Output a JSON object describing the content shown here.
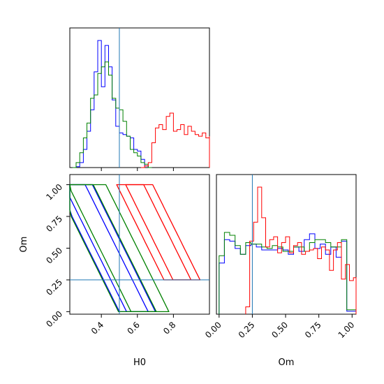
{
  "figure": {
    "type": "corner-plot",
    "colors": {
      "blue": "#0000ff",
      "green": "#008000",
      "red": "#ff0000",
      "truth": "#1f77b4"
    }
  },
  "chart_data": [
    {
      "panel": "H0 marginal histogram",
      "type": "histogram",
      "x_range": [
        0.225,
        1.0
      ],
      "y_axis": "hidden",
      "truth": 0.5,
      "series": [
        {
          "color": "blue",
          "edges_start": 0.24,
          "bin_width": 0.02,
          "counts": [
            0,
            0.5,
            3,
            11,
            22,
            35,
            58,
            77,
            49,
            74,
            61,
            41,
            25,
            21,
            20,
            19,
            18,
            11,
            10,
            5,
            1,
            0
          ]
        },
        {
          "color": "green",
          "edges_start": 0.24,
          "bin_width": 0.02,
          "counts": [
            0,
            3,
            9,
            18,
            27,
            42,
            44,
            57,
            61,
            64,
            56,
            42,
            36,
            35,
            28,
            19,
            11,
            9,
            7,
            3,
            2,
            0
          ]
        },
        {
          "color": "red",
          "edges_start": 0.62,
          "bin_width": 0.02,
          "counts": [
            0,
            1,
            3,
            15,
            24,
            26,
            23,
            31,
            33,
            22,
            23,
            26,
            20,
            25,
            22,
            20,
            19,
            21,
            18,
            18,
            19
          ]
        }
      ]
    },
    {
      "panel": "H0 vs Om contours",
      "type": "contour",
      "x_label": "H0",
      "y_label": "Om",
      "x_range": [
        0.225,
        1.0
      ],
      "y_range": [
        -0.02,
        1.08
      ],
      "x_ticks": [
        "0.4",
        "0.6",
        "0.8"
      ],
      "y_ticks": [
        "0.00",
        "0.25",
        "0.50",
        "0.75",
        "1.00"
      ],
      "truth": {
        "H0": 0.5,
        "Om": 0.25
      },
      "series": [
        {
          "color": "blue",
          "x_centers": [
            0.4,
            0.45
          ],
          "om_levels": [
            0.0,
            0.25,
            0.5,
            0.75,
            1.0
          ],
          "x_halfwidth": [
            0.1,
            0.06
          ]
        },
        {
          "color": "green",
          "x_centers": [
            0.43,
            0.49
          ],
          "om_levels": [
            0.0,
            0.25,
            0.5,
            0.75,
            1.0
          ],
          "x_halfwidth": [
            0.14,
            0.07
          ]
        },
        {
          "color": "red",
          "x_centers": [
            0.72,
            0.8
          ],
          "om_levels": [
            0.25,
            0.5,
            0.75,
            1.0
          ],
          "x_halfwidth": [
            0.1,
            0.05
          ]
        }
      ]
    },
    {
      "panel": "Om marginal histogram",
      "type": "histogram",
      "x_label": "Om",
      "x_range": [
        -0.02,
        1.03
      ],
      "x_ticks": [
        "0.00",
        "0.25",
        "0.50",
        "0.75",
        "1.00"
      ],
      "y_axis": "hidden",
      "truth": 0.25,
      "series": [
        {
          "color": "blue",
          "edges_start": 0.0,
          "bin_width": 0.04,
          "counts": [
            35,
            51,
            50,
            45,
            41,
            47,
            48,
            46,
            44,
            44,
            44,
            45,
            44,
            41,
            46,
            43,
            51,
            55,
            45,
            48,
            41,
            46,
            39,
            50,
            2,
            2
          ]
        },
        {
          "color": "green",
          "edges_start": 0.0,
          "bin_width": 0.04,
          "counts": [
            40,
            56,
            54,
            47,
            41,
            49,
            48,
            48,
            46,
            45,
            47,
            46,
            43,
            43,
            46,
            46,
            43,
            49,
            51,
            51,
            49,
            46,
            46,
            51,
            3,
            3
          ]
        },
        {
          "color": "red",
          "edges_start": 0.2,
          "bin_width": 0.03,
          "counts": [
            5,
            50,
            63,
            87,
            66,
            46,
            51,
            53,
            42,
            49,
            53,
            42,
            47,
            49,
            41,
            43,
            44,
            45,
            38,
            46,
            44,
            30,
            44,
            49,
            24,
            34,
            23,
            25,
            3,
            0
          ]
        }
      ]
    }
  ]
}
